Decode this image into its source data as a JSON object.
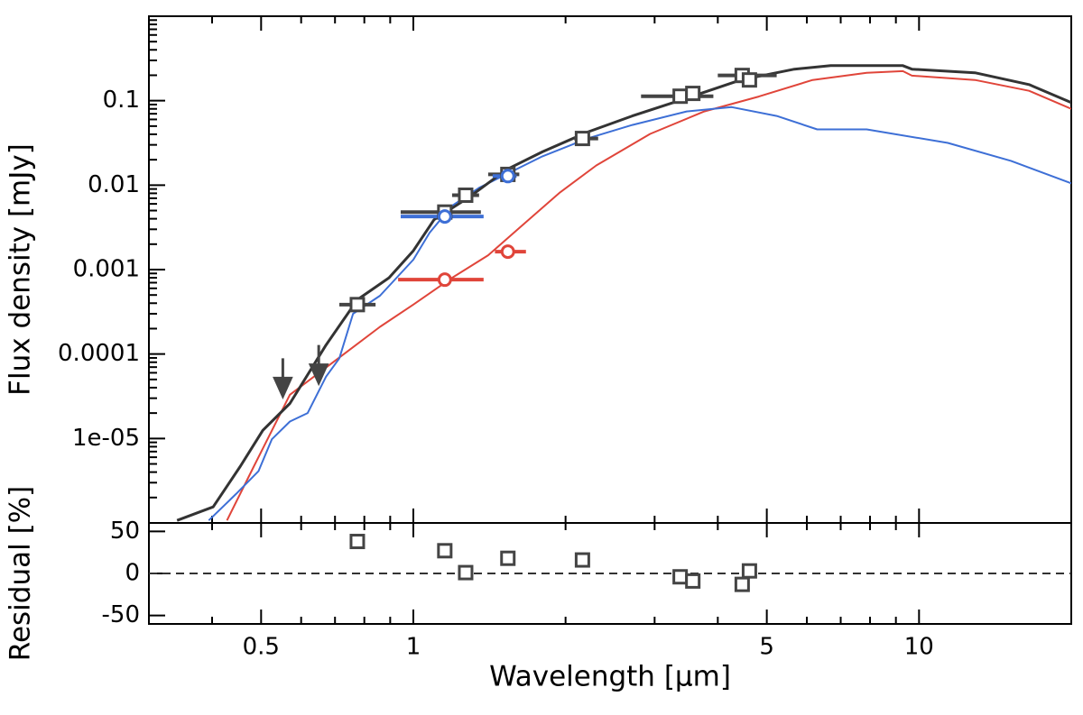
{
  "chart_data": [
    {
      "type": "line",
      "ylabel": "Flux density [mJy]",
      "log_x": true,
      "log_y": true,
      "xlim": [
        0.3,
        20
      ],
      "ylim": [
        1e-06,
        1
      ],
      "xticks": [
        0.5,
        1,
        5,
        10
      ],
      "xminorticks": [
        0.3,
        0.4,
        0.6,
        0.7,
        0.8,
        0.9,
        2,
        3,
        4,
        6,
        7,
        8,
        9,
        20
      ],
      "yticks": [
        {
          "value": 1e-05,
          "label": "1e-05"
        },
        0.0001,
        0.001,
        0.01,
        0.1
      ],
      "yminorticks": [
        2e-06,
        3e-06,
        4e-06,
        5e-06,
        6e-06,
        7e-06,
        8e-06,
        9e-06,
        2e-05,
        3e-05,
        4e-05,
        5e-05,
        6e-05,
        7e-05,
        8e-05,
        9e-05,
        0.0002,
        0.0003,
        0.0004,
        0.0005,
        0.0006,
        0.0007,
        0.0008,
        0.0009,
        0.002,
        0.003,
        0.004,
        0.005,
        0.006,
        0.007,
        0.008,
        0.009,
        0.02,
        0.03,
        0.04,
        0.05,
        0.06,
        0.07,
        0.08,
        0.09,
        0.2,
        0.3,
        0.4,
        0.5,
        0.6,
        0.7,
        0.8,
        0.9
      ],
      "series": [
        {
          "color": "#e0453a",
          "x": [
            0.428,
            0.484,
            0.57,
            0.729,
            0.859,
            1.0,
            1.193,
            1.406,
            1.657,
            1.95,
            2.3,
            2.94,
            3.76,
            4.82,
            6.16,
            7.88,
            9.29,
            9.68,
            12.9,
            16.5,
            20
          ],
          "values": [
            1.07e-06,
            4.7e-06,
            3.3e-05,
            0.0001,
            0.00021,
            0.000385,
            0.0008,
            0.00148,
            0.0035,
            0.0082,
            0.0171,
            0.0404,
            0.0745,
            0.112,
            0.176,
            0.214,
            0.224,
            0.198,
            0.176,
            0.131,
            0.08
          ]
        },
        {
          "color": "#3d6fd6",
          "x": [
            0.394,
            0.446,
            0.494,
            0.525,
            0.57,
            0.618,
            0.672,
            0.714,
            0.76,
            0.859,
            1.0,
            1.077,
            1.193,
            1.349,
            1.526,
            1.8,
            2.21,
            2.71,
            3.47,
            4.26,
            5.23,
            6.29,
            7.88,
            11.4,
            15.2,
            20
          ],
          "values": [
            1.07e-06,
            2.2e-06,
            4.1e-06,
            9.8e-06,
            1.59e-05,
            2e-05,
            5.4e-05,
            8.9e-05,
            0.0003,
            0.00049,
            0.00131,
            0.00273,
            0.0057,
            0.0093,
            0.0134,
            0.0219,
            0.0357,
            0.0516,
            0.0745,
            0.084,
            0.066,
            0.0457,
            0.0457,
            0.0316,
            0.0194,
            0.0105
          ]
        },
        {
          "color": "#333333",
          "x": [
            0.341,
            0.402,
            0.455,
            0.504,
            0.57,
            0.672,
            0.775,
            0.895,
            1.0,
            1.099,
            1.294,
            1.526,
            1.8,
            2.21,
            2.71,
            3.47,
            4.44,
            5.67,
            6.69,
            9.29,
            9.68,
            12.9,
            16.5,
            20
          ],
          "values": [
            1.07e-06,
            1.55e-06,
            4.7e-06,
            1.25e-05,
            2.6e-05,
            0.000128,
            0.00044,
            0.0008,
            0.00167,
            0.0039,
            0.0073,
            0.0152,
            0.0248,
            0.0425,
            0.066,
            0.107,
            0.176,
            0.236,
            0.26,
            0.26,
            0.236,
            0.214,
            0.155,
            0.095
          ]
        }
      ],
      "markers": [
        {
          "marker": "square",
          "color": "#444444",
          "x": [
            0.775,
            1.154,
            1.269,
            1.538,
            2.16,
            3.37,
            3.57,
            4.47,
            4.62
          ],
          "values": [
            0.000385,
            0.0048,
            0.0076,
            0.0134,
            0.0357,
            0.113,
            0.122,
            0.199,
            0.176
          ],
          "xmin": [
            0.714,
            0.944,
            1.193,
            1.406,
            2.08,
            2.82,
            3.4,
            4.0,
            4.35
          ],
          "xmax": [
            0.842,
            1.36,
            1.349,
            1.62,
            2.32,
            3.92,
            3.69,
            5.23,
            4.72
          ]
        },
        {
          "marker": "circle",
          "color": "#3d6fd6",
          "x": [
            1.154,
            1.538
          ],
          "values": [
            0.00425,
            0.0128
          ],
          "xmin": [
            0.944,
            1.435
          ],
          "xmax": [
            1.377,
            1.6
          ]
        },
        {
          "marker": "circle",
          "color": "#e0453a",
          "x": [
            1.154,
            1.538
          ],
          "values": [
            0.00076,
            0.00163
          ],
          "xmin": [
            0.933,
            1.45
          ],
          "xmax": [
            1.377,
            1.67
          ]
        }
      ],
      "upper_limits": {
        "color": "#444444",
        "x": [
          0.552,
          0.65
        ],
        "values": [
          8.9e-05,
          0.000128
        ]
      }
    },
    {
      "type": "scatter",
      "ylabel": "Residual [%]",
      "xlabel": "Wavelength [μm]",
      "log_x": true,
      "xlim": [
        0.3,
        20
      ],
      "ylim": [
        -60,
        60
      ],
      "xticks": [
        0.5,
        1,
        5,
        10
      ],
      "xminorticks": [
        0.3,
        0.4,
        0.6,
        0.7,
        0.8,
        0.9,
        2,
        3,
        4,
        6,
        7,
        8,
        9,
        20
      ],
      "yticks": [
        -50,
        0,
        50
      ],
      "reference_line": 0,
      "color": "#444444",
      "x": [
        0.775,
        1.154,
        1.269,
        1.538,
        2.16,
        3.37,
        3.57,
        4.47,
        4.62
      ],
      "values": [
        38,
        27,
        1,
        18,
        16,
        -4,
        -9,
        -13,
        3
      ]
    }
  ]
}
